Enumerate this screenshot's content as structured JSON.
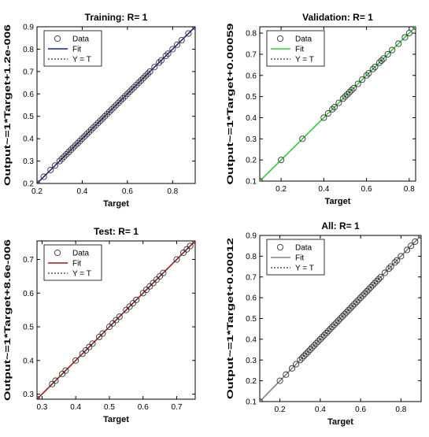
{
  "chart_data": [
    {
      "type": "scatter",
      "title": "Training: R= 1",
      "xlabel": "Target",
      "ylabel": "Output~=1*Target+1.2e-006",
      "xlim": [
        0.2,
        0.9
      ],
      "ylim": [
        0.2,
        0.9
      ],
      "xticks": [
        0.2,
        0.4,
        0.6,
        0.8
      ],
      "yticks": [
        0.2,
        0.3,
        0.4,
        0.5,
        0.6,
        0.7,
        0.8,
        0.9
      ],
      "fit_color": "#1f1f9f",
      "fit_line": [
        [
          0.2,
          0.2
        ],
        [
          0.9,
          0.9
        ]
      ],
      "legend": [
        "Data",
        "Fit",
        "Y = T"
      ],
      "legend_position": "top-left",
      "grid": false,
      "series": [
        {
          "values": [
            0.2,
            0.23,
            0.26,
            0.28,
            0.3,
            0.31,
            0.32,
            0.33,
            0.34,
            0.35,
            0.36,
            0.37,
            0.38,
            0.39,
            0.4,
            0.41,
            0.42,
            0.43,
            0.44,
            0.45,
            0.46,
            0.47,
            0.48,
            0.49,
            0.5,
            0.51,
            0.52,
            0.53,
            0.54,
            0.55,
            0.56,
            0.57,
            0.58,
            0.59,
            0.6,
            0.61,
            0.62,
            0.63,
            0.64,
            0.65,
            0.66,
            0.67,
            0.68,
            0.69,
            0.7,
            0.72,
            0.74,
            0.75,
            0.77,
            0.78,
            0.8,
            0.82,
            0.84,
            0.87,
            0.9
          ]
        }
      ]
    },
    {
      "type": "scatter",
      "title": "Validation: R= 1",
      "xlabel": "Target",
      "ylabel": "Output~=1*Target+0.00059",
      "xlim": [
        0.1,
        0.83
      ],
      "ylim": [
        0.1,
        0.83
      ],
      "xticks": [
        0.2,
        0.4,
        0.6,
        0.8
      ],
      "yticks": [
        0.1,
        0.2,
        0.3,
        0.4,
        0.5,
        0.6,
        0.7,
        0.8
      ],
      "fit_color": "#33cc33",
      "fit_line": [
        [
          0.1,
          0.1
        ],
        [
          0.83,
          0.83
        ]
      ],
      "legend": [
        "Data",
        "Fit",
        "Y = T"
      ],
      "legend_position": "top-left",
      "grid": false,
      "series": [
        {
          "values": [
            0.1,
            0.2,
            0.3,
            0.4,
            0.42,
            0.44,
            0.45,
            0.47,
            0.49,
            0.5,
            0.51,
            0.52,
            0.53,
            0.54,
            0.56,
            0.58,
            0.6,
            0.61,
            0.63,
            0.64,
            0.66,
            0.67,
            0.68,
            0.7,
            0.72,
            0.75,
            0.78,
            0.8,
            0.83
          ]
        }
      ]
    },
    {
      "type": "scatter",
      "title": "Test: R= 1",
      "xlabel": "Target",
      "ylabel": "Output~=1*Target+8.6e-006",
      "xlim": [
        0.285,
        0.755
      ],
      "ylim": [
        0.285,
        0.755
      ],
      "xticks": [
        0.3,
        0.4,
        0.5,
        0.6,
        0.7
      ],
      "yticks": [
        0.3,
        0.4,
        0.5,
        0.6,
        0.7
      ],
      "fit_color": "#a01818",
      "fit_line": [
        [
          0.285,
          0.285
        ],
        [
          0.755,
          0.755
        ]
      ],
      "legend": [
        "Data",
        "Fit",
        "Y = T"
      ],
      "legend_position": "top-left",
      "grid": false,
      "series": [
        {
          "values": [
            0.285,
            0.33,
            0.34,
            0.36,
            0.37,
            0.4,
            0.42,
            0.43,
            0.44,
            0.45,
            0.47,
            0.48,
            0.5,
            0.51,
            0.52,
            0.53,
            0.55,
            0.56,
            0.57,
            0.58,
            0.6,
            0.61,
            0.62,
            0.63,
            0.64,
            0.65,
            0.66,
            0.7,
            0.72,
            0.73,
            0.74,
            0.755
          ]
        }
      ]
    },
    {
      "type": "scatter",
      "title": "All: R= 1",
      "xlabel": "Target",
      "ylabel": "Output~=1*Target+0.00012",
      "xlim": [
        0.1,
        0.9
      ],
      "ylim": [
        0.1,
        0.9
      ],
      "xticks": [
        0.2,
        0.4,
        0.6,
        0.8
      ],
      "yticks": [
        0.1,
        0.2,
        0.3,
        0.4,
        0.5,
        0.6,
        0.7,
        0.8,
        0.9
      ],
      "fit_color": "#808080",
      "fit_line": [
        [
          0.1,
          0.1
        ],
        [
          0.9,
          0.9
        ]
      ],
      "legend": [
        "Data",
        "Fit",
        "Y = T"
      ],
      "legend_position": "top-left",
      "grid": false,
      "series": [
        {
          "values": [
            0.1,
            0.2,
            0.23,
            0.26,
            0.28,
            0.3,
            0.31,
            0.32,
            0.33,
            0.34,
            0.35,
            0.36,
            0.37,
            0.38,
            0.39,
            0.4,
            0.41,
            0.42,
            0.43,
            0.44,
            0.45,
            0.46,
            0.47,
            0.48,
            0.49,
            0.5,
            0.51,
            0.52,
            0.53,
            0.54,
            0.55,
            0.56,
            0.57,
            0.58,
            0.59,
            0.6,
            0.61,
            0.62,
            0.63,
            0.64,
            0.65,
            0.66,
            0.67,
            0.68,
            0.69,
            0.7,
            0.72,
            0.74,
            0.75,
            0.77,
            0.78,
            0.8,
            0.83,
            0.85,
            0.87,
            0.9
          ]
        }
      ]
    }
  ]
}
